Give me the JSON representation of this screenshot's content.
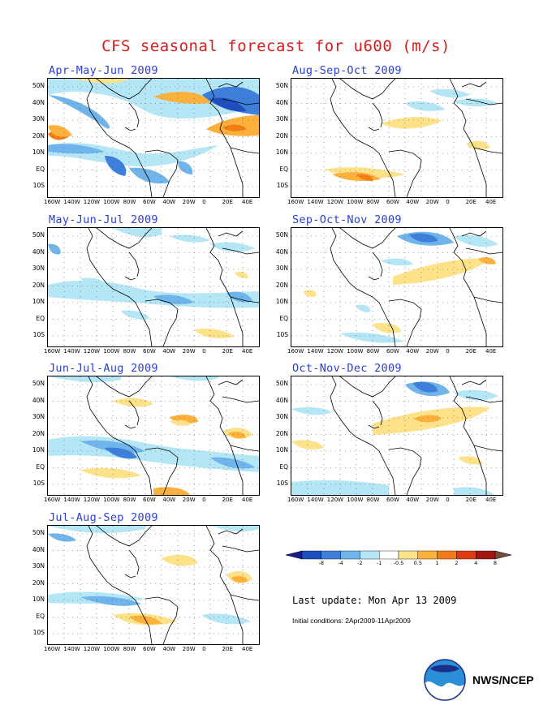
{
  "title": "CFS seasonal forecast for u600 (m/s)",
  "panels": [
    {
      "label": "Apr-May-Jun 2009"
    },
    {
      "label": "Aug-Sep-Oct 2009"
    },
    {
      "label": "May-Jun-Jul 2009"
    },
    {
      "label": "Sep-Oct-Nov 2009"
    },
    {
      "label": "Jun-Jul-Aug 2009"
    },
    {
      "label": "Oct-Nov-Dec 2009"
    },
    {
      "label": "Jul-Aug-Sep 2009"
    }
  ],
  "map_axes": {
    "lat_labels": [
      "50N",
      "40N",
      "30N",
      "20N",
      "10N",
      "EQ",
      "10S"
    ],
    "lon_labels": [
      "160W",
      "140W",
      "120W",
      "100W",
      "80W",
      "60W",
      "40W",
      "20W",
      "0",
      "20E",
      "40E"
    ]
  },
  "colorbar": {
    "labels": [
      "-8",
      "-4",
      "-2",
      "-1",
      "-0.5",
      "0.5",
      "1",
      "2",
      "4",
      "8"
    ],
    "colors": [
      "#1a1d8c",
      "#1f4fbf",
      "#3e7fdc",
      "#6fb4ea",
      "#b5e6f6",
      "#ffffff",
      "#fde28a",
      "#fbb13c",
      "#f27d14",
      "#e03c12",
      "#a3150e",
      "#7a4a3a"
    ]
  },
  "last_update": "Last update: Mon Apr 13 2009",
  "initial_conditions": "Initial conditions: 2Apr2009-11Apr2009",
  "agency": "NWS/NCEP"
}
